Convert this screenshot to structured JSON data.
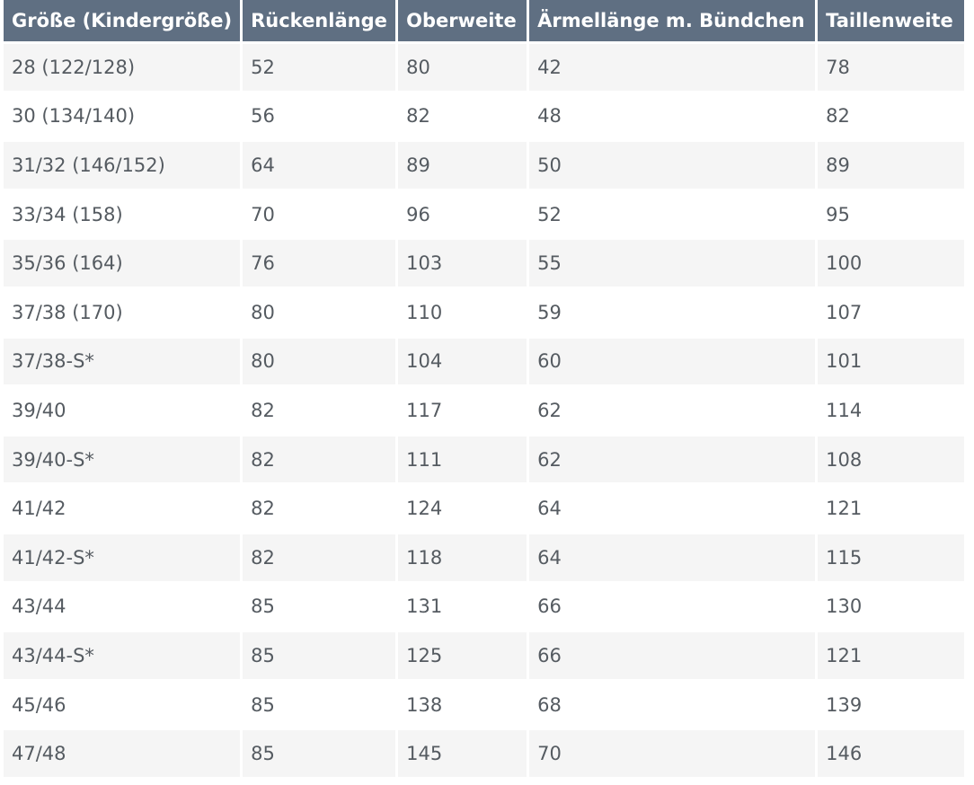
{
  "table": {
    "headers": [
      "Größe (Kindergröße)",
      "Rückenlänge",
      "Oberweite",
      "Ärmellänge m. Bündchen",
      "Taillenweite"
    ],
    "rows": [
      [
        "28 (122/128)",
        "52",
        "80",
        "42",
        "78"
      ],
      [
        "30 (134/140)",
        "56",
        "82",
        "48",
        "82"
      ],
      [
        "31/32 (146/152)",
        "64",
        "89",
        "50",
        "89"
      ],
      [
        "33/34 (158)",
        "70",
        "96",
        "52",
        "95"
      ],
      [
        "35/36 (164)",
        "76",
        "103",
        "55",
        "100"
      ],
      [
        "37/38 (170)",
        "80",
        "110",
        "59",
        "107"
      ],
      [
        "37/38-S*",
        "80",
        "104",
        "60",
        "101"
      ],
      [
        "39/40",
        "82",
        "117",
        "62",
        "114"
      ],
      [
        "39/40-S*",
        "82",
        "111",
        "62",
        "108"
      ],
      [
        "41/42",
        "82",
        "124",
        "64",
        "121"
      ],
      [
        "41/42-S*",
        "82",
        "118",
        "64",
        "115"
      ],
      [
        "43/44",
        "85",
        "131",
        "66",
        "130"
      ],
      [
        "43/44-S*",
        "85",
        "125",
        "66",
        "121"
      ],
      [
        "45/46",
        "85",
        "138",
        "68",
        "139"
      ],
      [
        "47/48",
        "85",
        "145",
        "70",
        "146"
      ]
    ]
  }
}
